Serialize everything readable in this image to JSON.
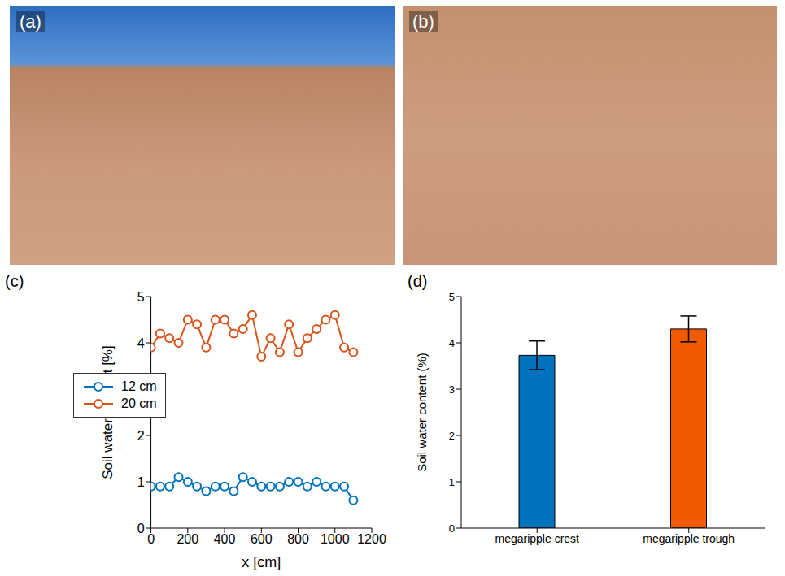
{
  "photos": [
    {
      "label": "(a)"
    },
    {
      "label": "(b)"
    }
  ],
  "chart_data": [
    {
      "type": "line",
      "label": "(c)",
      "xlabel": "x [cm]",
      "ylabel": "Soil water content [%]",
      "x": [
        0,
        50,
        100,
        150,
        200,
        250,
        300,
        350,
        400,
        450,
        500,
        550,
        600,
        650,
        700,
        750,
        800,
        850,
        900,
        950,
        1000,
        1050,
        1100
      ],
      "series": [
        {
          "name": "12 cm",
          "color": "#0072bd",
          "marker": "o",
          "values": [
            0.9,
            0.9,
            0.9,
            1.1,
            1.0,
            0.9,
            0.8,
            0.9,
            0.9,
            0.8,
            1.1,
            1.0,
            0.9,
            0.9,
            0.9,
            1.0,
            1.0,
            0.9,
            1.0,
            0.9,
            0.9,
            0.9,
            0.6
          ]
        },
        {
          "name": "20 cm",
          "color": "#d95319",
          "marker": "o",
          "values": [
            3.9,
            4.2,
            4.1,
            4.0,
            4.5,
            4.4,
            3.9,
            4.5,
            4.5,
            4.2,
            4.3,
            4.6,
            3.7,
            4.1,
            3.8,
            4.4,
            3.8,
            4.1,
            4.3,
            4.5,
            4.6,
            3.9,
            3.8
          ]
        }
      ],
      "xlim": [
        0,
        1200
      ],
      "xticks": [
        0,
        200,
        400,
        600,
        800,
        1000,
        1200
      ],
      "ylim": [
        0,
        5
      ],
      "yticks": [
        0,
        1,
        2,
        3,
        4,
        5
      ],
      "legend": "upper left",
      "grid": false
    },
    {
      "type": "bar",
      "label": "(d)",
      "ylabel": "Soil water content (%)",
      "categories": [
        "megaripple crest",
        "megaripple trough"
      ],
      "values": [
        3.73,
        4.3
      ],
      "errors": [
        0.31,
        0.28
      ],
      "colors": [
        "#0072bd",
        "#f05a00"
      ],
      "ylim": [
        0,
        5
      ],
      "yticks": [
        0,
        1,
        2,
        3,
        4,
        5
      ],
      "grid": false
    }
  ]
}
